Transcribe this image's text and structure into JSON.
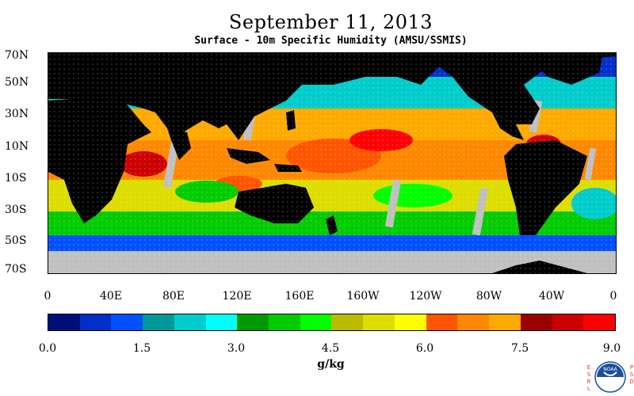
{
  "title": "September 11, 2013",
  "subtitle": "Surface - 10m Specific Humidity (AMSU/SSMIS)",
  "map": {
    "lat_labels": [
      "70N",
      "50N",
      "30N",
      "10N",
      "10S",
      "30S",
      "50S",
      "70S"
    ],
    "lon_labels": [
      "0",
      "40E",
      "80E",
      "120E",
      "160E",
      "160W",
      "120W",
      "80W",
      "40W",
      "0"
    ],
    "land_color": "#000000",
    "missing_color": "#c0c0c0"
  },
  "colorbar": {
    "units": "g/kg",
    "tick_labels": [
      "0.0",
      "1.5",
      "3.0",
      "4.5",
      "6.0",
      "7.5",
      "9.0"
    ],
    "colors": [
      "#00107a",
      "#0030c8",
      "#0050ff",
      "#009999",
      "#00cccc",
      "#00ffff",
      "#009900",
      "#00cc00",
      "#00ff00",
      "#bbbb00",
      "#dddd00",
      "#ffff00",
      "#ff5500",
      "#ff8800",
      "#ffaa00",
      "#990000",
      "#cc0000",
      "#ff0000"
    ]
  },
  "logo": {
    "left_text": [
      "E",
      "S",
      "R",
      "L"
    ],
    "right_text": [
      "P",
      "S",
      "D"
    ],
    "center_text": "NOAA"
  }
}
